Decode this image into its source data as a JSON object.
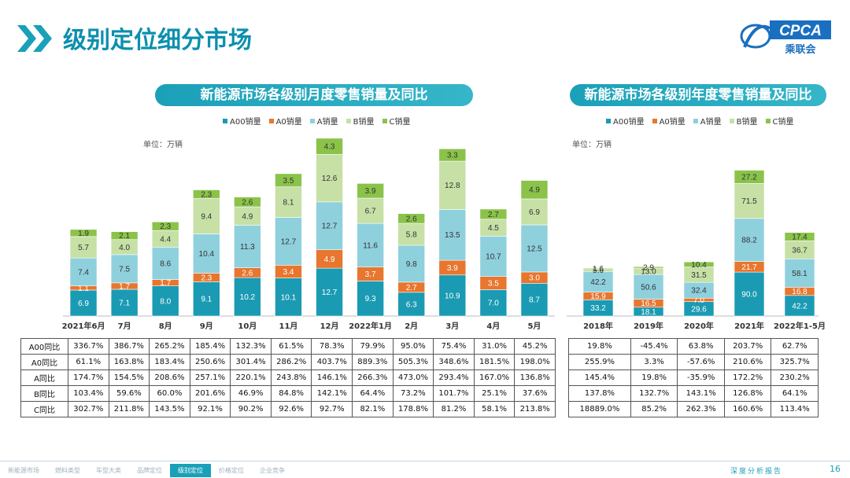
{
  "page": {
    "title": "级别定位细分市场",
    "logo_text": "CPCA",
    "logo_subtext": "乘联会",
    "page_number": "16",
    "report_label": "深度分析报告"
  },
  "nav": [
    {
      "label": "新能源市场",
      "active": false
    },
    {
      "label": "燃料类型",
      "active": false
    },
    {
      "label": "车型大类",
      "active": false
    },
    {
      "label": "品牌定位",
      "active": false
    },
    {
      "label": "级别定位",
      "active": true
    },
    {
      "label": "价格定位",
      "active": false
    },
    {
      "label": "企业竞争",
      "active": false
    }
  ],
  "colors": {
    "A00": "#1b9ab3",
    "A0": "#e8762e",
    "A": "#8fd0dd",
    "B": "#c6e0a6",
    "C": "#8bc34a",
    "accent": "#1aa0b8"
  },
  "legend": [
    "A00销量",
    "A0销量",
    "A销量",
    "B销量",
    "C销量"
  ],
  "chart_data": [
    {
      "type": "bar",
      "stacked": true,
      "title": "新能源市场各级别月度零售销量及同比",
      "unit": "单位：万辆",
      "categories": [
        "2021年6月",
        "7月",
        "8月",
        "9月",
        "10月",
        "11月",
        "12月",
        "2022年1月",
        "2月",
        "3月",
        "4月",
        "5月"
      ],
      "series": [
        {
          "name": "A00销量",
          "values": [
            6.9,
            7.1,
            8.0,
            9.1,
            10.2,
            10.1,
            12.7,
            9.3,
            6.3,
            10.9,
            7.0,
            8.7
          ]
        },
        {
          "name": "A0销量",
          "values": [
            1.1,
            1.7,
            1.7,
            2.3,
            2.6,
            3.4,
            4.9,
            3.7,
            2.7,
            3.9,
            3.5,
            3.0
          ]
        },
        {
          "name": "A销量",
          "values": [
            7.4,
            7.5,
            8.6,
            10.4,
            11.3,
            12.7,
            12.7,
            11.6,
            9.8,
            13.5,
            10.7,
            12.5
          ]
        },
        {
          "name": "B销量",
          "values": [
            5.7,
            4.0,
            4.4,
            9.4,
            4.9,
            8.1,
            12.6,
            6.7,
            5.8,
            12.8,
            4.5,
            6.9
          ]
        },
        {
          "name": "C销量",
          "values": [
            1.9,
            2.1,
            2.3,
            2.3,
            2.6,
            3.5,
            4.3,
            3.9,
            2.6,
            3.3,
            2.7,
            4.9
          ]
        }
      ],
      "ymax": 48,
      "table": {
        "rows": [
          {
            "label": "A00同比",
            "values": [
              "336.7%",
              "386.7%",
              "265.2%",
              "185.4%",
              "132.3%",
              "61.5%",
              "78.3%",
              "79.9%",
              "95.0%",
              "75.4%",
              "31.0%",
              "45.2%"
            ]
          },
          {
            "label": "A0同比",
            "values": [
              "61.1%",
              "163.8%",
              "183.4%",
              "250.6%",
              "301.4%",
              "286.2%",
              "403.7%",
              "889.3%",
              "505.3%",
              "348.6%",
              "181.5%",
              "198.0%"
            ]
          },
          {
            "label": "A同比",
            "values": [
              "174.7%",
              "154.5%",
              "208.6%",
              "257.1%",
              "220.1%",
              "243.8%",
              "146.1%",
              "266.3%",
              "473.0%",
              "293.4%",
              "167.0%",
              "136.8%"
            ]
          },
          {
            "label": "B同比",
            "values": [
              "103.4%",
              "59.6%",
              "60.0%",
              "201.6%",
              "46.9%",
              "84.8%",
              "142.1%",
              "64.4%",
              "73.2%",
              "101.7%",
              "25.1%",
              "37.6%"
            ]
          },
          {
            "label": "C同比",
            "values": [
              "302.7%",
              "211.8%",
              "143.5%",
              "92.1%",
              "90.2%",
              "92.6%",
              "92.7%",
              "82.1%",
              "178.8%",
              "81.2%",
              "58.1%",
              "213.8%"
            ]
          }
        ]
      }
    },
    {
      "type": "bar",
      "stacked": true,
      "title": "新能源市场各级别年度零售销量及同比",
      "unit": "单位：万辆",
      "categories": [
        "2018年",
        "2019年",
        "2020年",
        "2021年",
        "2022年1-5月"
      ],
      "series": [
        {
          "name": "A00销量",
          "values": [
            33.2,
            18.1,
            29.6,
            90.0,
            42.2
          ]
        },
        {
          "name": "A0销量",
          "values": [
            15.9,
            16.5,
            7.0,
            21.7,
            16.8
          ]
        },
        {
          "name": "A销量",
          "values": [
            42.2,
            50.6,
            32.4,
            88.2,
            58.1
          ]
        },
        {
          "name": "B销量",
          "values": [
            5.6,
            13.0,
            31.5,
            71.5,
            36.7
          ]
        },
        {
          "name": "C销量",
          "values": [
            1.6,
            2.9,
            10.4,
            27.2,
            17.4
          ]
        }
      ],
      "ymax": 330,
      "table": {
        "rows": [
          {
            "label": "A00同比",
            "values": [
              "19.8%",
              "-45.4%",
              "63.8%",
              "203.7%",
              "62.7%"
            ]
          },
          {
            "label": "A0同比",
            "values": [
              "255.9%",
              "3.3%",
              "-57.6%",
              "210.6%",
              "325.7%"
            ]
          },
          {
            "label": "A同比",
            "values": [
              "145.4%",
              "19.8%",
              "-35.9%",
              "172.2%",
              "230.2%"
            ]
          },
          {
            "label": "B同比",
            "values": [
              "137.8%",
              "132.7%",
              "143.1%",
              "126.8%",
              "64.1%"
            ]
          },
          {
            "label": "C同比",
            "values": [
              "18889.0%",
              "85.2%",
              "262.3%",
              "160.6%",
              "113.4%"
            ]
          }
        ]
      }
    }
  ]
}
